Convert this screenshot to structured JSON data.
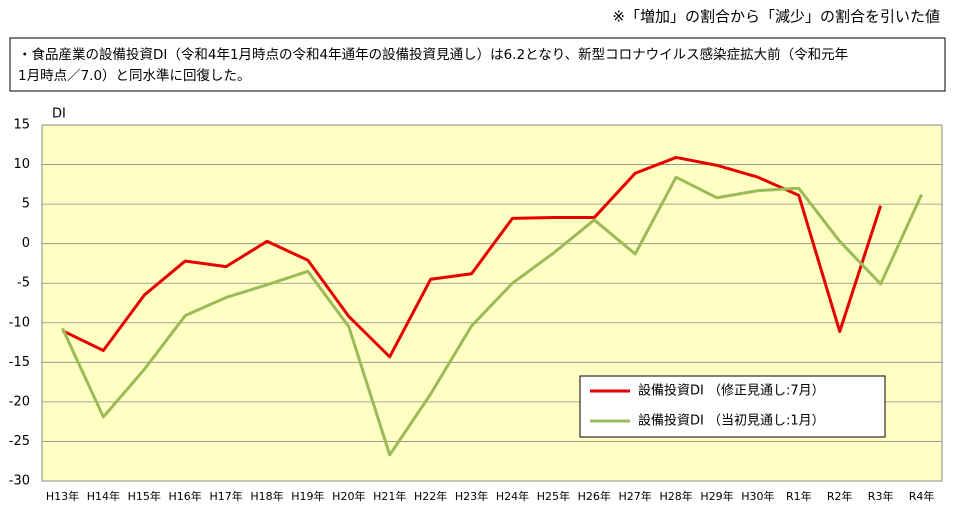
{
  "header": {
    "note": "※「増加」の割合から「減少」の割合を引いた値"
  },
  "summary": {
    "lines": [
      "・食品産業の設備投資DI（令和4年1月時点の令和4年通年の設備投資見通し）は6.2となり、新型コロナウイルス感染症拡大前（令和元年",
      "1月時点／7.0）と同水準に回復した。"
    ]
  },
  "chart_data": {
    "type": "line",
    "y_label": "DI",
    "categories": [
      "H13年",
      "H14年",
      "H15年",
      "H16年",
      "H17年",
      "H18年",
      "H19年",
      "H20年",
      "H21年",
      "H22年",
      "H23年",
      "H24年",
      "H25年",
      "H26年",
      "H27年",
      "H28年",
      "H29年",
      "H30年",
      "R1年",
      "R2年",
      "R3年",
      "R4年"
    ],
    "series": [
      {
        "name": "設備投資DI （修正見通し:7月）",
        "color": "#e60000",
        "values": [
          -11,
          -13.5,
          -6.5,
          -2.2,
          -2.9,
          0.3,
          -2.1,
          -9.2,
          -14.3,
          -4.5,
          -3.8,
          3.2,
          3.3,
          3.3,
          8.9,
          10.9,
          9.9,
          8.4,
          6.1,
          -11.1,
          4.8,
          null
        ]
      },
      {
        "name": "設備投資DI （当初見通し:1月）",
        "color": "#9bbb59",
        "values": [
          -10.7,
          -21.9,
          -15.9,
          -9.1,
          -6.8,
          -5.2,
          -3.5,
          -10.5,
          -26.7,
          -19.0,
          -10.4,
          -5.0,
          -1.2,
          3.0,
          -1.3,
          8.4,
          5.8,
          6.7,
          7.0,
          0.3,
          -5.1,
          6.2
        ]
      }
    ],
    "ylim": [
      -30,
      15
    ],
    "yticks": [
      -30,
      -25,
      -20,
      -15,
      -10,
      -5,
      0,
      5,
      10,
      15
    ],
    "grid": true,
    "background": "#ffffc4",
    "legend": "lower-right"
  }
}
